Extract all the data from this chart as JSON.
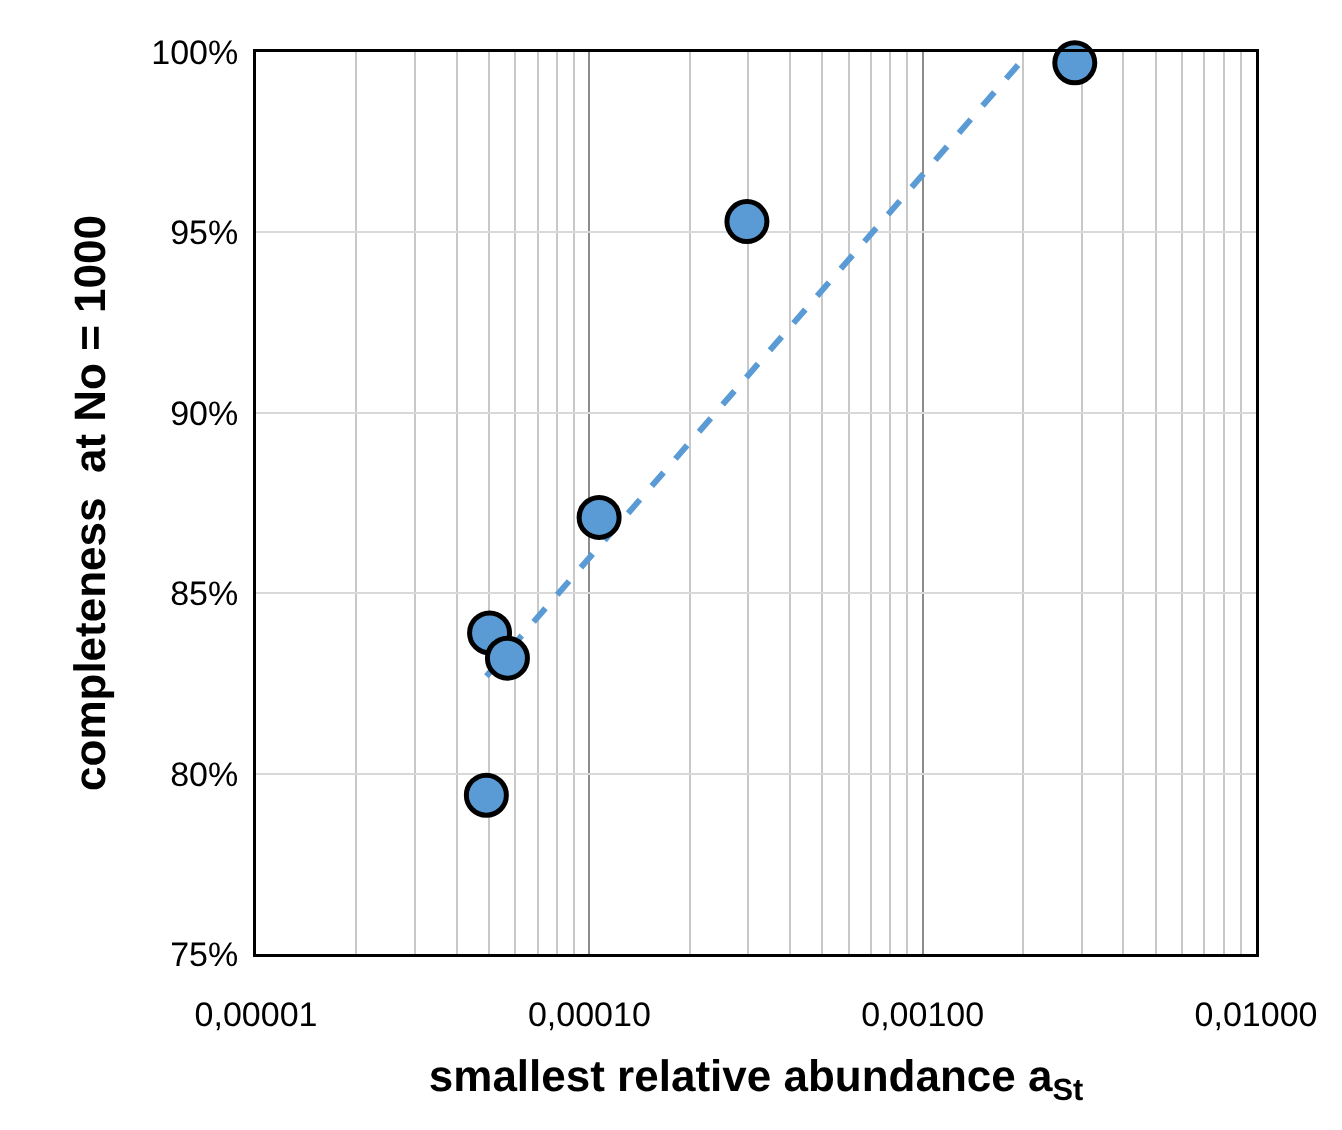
{
  "chart_data": {
    "type": "scatter",
    "xlabel": "smallest relative abundance a$_{St}$",
    "ylabel": "completeness  at No = 1000",
    "log": "x",
    "grid": true,
    "marker": "circle",
    "xlim": [
      1e-05,
      0.01
    ],
    "xticks": [
      {
        "value": 1e-05,
        "label": "0,00001"
      },
      {
        "value": 0.0001,
        "label": "0,00010"
      },
      {
        "value": 0.001,
        "label": "0,00100"
      },
      {
        "value": 0.01,
        "label": "0,01000"
      }
    ],
    "ylim": [
      75,
      100
    ],
    "yticks": [
      {
        "value": 75,
        "label": "75%"
      },
      {
        "value": 80,
        "label": "80%"
      },
      {
        "value": 85,
        "label": "85%"
      },
      {
        "value": 90,
        "label": "90%"
      },
      {
        "value": 95,
        "label": "95%"
      },
      {
        "value": 100,
        "label": "100%"
      }
    ],
    "series": [
      {
        "type": "line",
        "color": "#5b9bd5",
        "line_style": "dashed",
        "marker": "none",
        "x": [
          4.91e-05,
          0.00209
        ],
        "values": [
          82.7,
          100
        ]
      },
      {
        "color": "#5b9bd5",
        "x": [
          0.00286,
          0.000297,
          0.000107,
          5.02e-05,
          5.68e-05,
          4.91e-05
        ],
        "values": [
          99.7,
          95.3,
          87.1,
          83.9,
          83.2,
          79.4
        ]
      }
    ]
  }
}
